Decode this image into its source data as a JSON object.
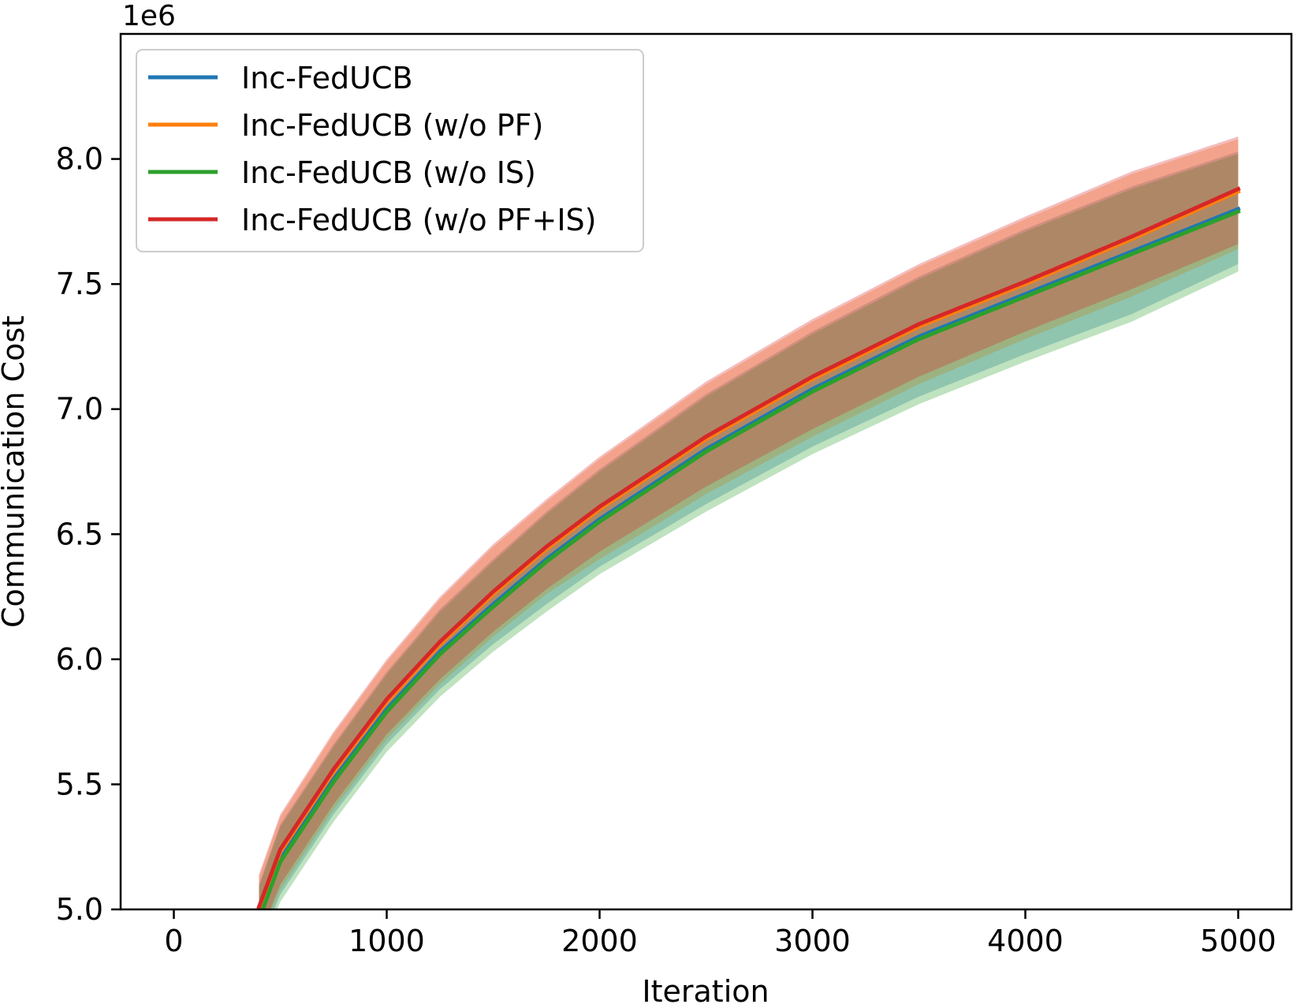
{
  "chart_data": {
    "type": "line",
    "title": "",
    "xlabel": "Iteration",
    "ylabel": "Communication Cost",
    "y_offset_label": "1e6",
    "y_scale_factor": 1000000,
    "xlim": [
      -250,
      5250
    ],
    "ylim": [
      5.0,
      8.5
    ],
    "xticks": [
      0,
      1000,
      2000,
      3000,
      4000,
      5000
    ],
    "xtick_labels": [
      "0",
      "1000",
      "2000",
      "3000",
      "4000",
      "5000"
    ],
    "yticks": [
      5.0,
      5.5,
      6.0,
      6.5,
      7.0,
      7.5,
      8.0
    ],
    "ytick_labels": [
      "5.0",
      "5.5",
      "6.0",
      "6.5",
      "7.0",
      "7.5",
      "8.0"
    ],
    "grid": false,
    "legend_position": "top-left",
    "x": [
      400,
      500,
      750,
      1000,
      1250,
      1500,
      1750,
      2000,
      2500,
      3000,
      3500,
      4000,
      4500,
      5000
    ],
    "series": [
      {
        "name": "Inc-FedUCB",
        "color": "#1f77b4",
        "values": [
          4.97,
          5.2,
          5.52,
          5.8,
          6.03,
          6.22,
          6.4,
          6.56,
          6.84,
          7.08,
          7.29,
          7.46,
          7.63,
          7.8
        ],
        "lower": [
          4.85,
          5.06,
          5.38,
          5.66,
          5.88,
          6.06,
          6.22,
          6.37,
          6.62,
          6.85,
          7.05,
          7.22,
          7.38,
          7.58
        ],
        "upper": [
          5.1,
          5.34,
          5.66,
          5.95,
          6.2,
          6.4,
          6.59,
          6.76,
          7.06,
          7.31,
          7.53,
          7.72,
          7.89,
          8.03
        ]
      },
      {
        "name": "Inc-FedUCB (w/o PF)",
        "color": "#ff7f0e",
        "values": [
          5.0,
          5.23,
          5.55,
          5.83,
          6.06,
          6.26,
          6.44,
          6.6,
          6.88,
          7.12,
          7.33,
          7.5,
          7.68,
          7.87
        ],
        "lower": [
          4.88,
          5.08,
          5.4,
          5.68,
          5.9,
          6.09,
          6.26,
          6.4,
          6.66,
          6.89,
          7.1,
          7.28,
          7.45,
          7.64
        ],
        "upper": [
          5.13,
          5.37,
          5.7,
          5.99,
          6.24,
          6.45,
          6.63,
          6.8,
          7.1,
          7.35,
          7.57,
          7.76,
          7.94,
          8.08
        ]
      },
      {
        "name": "Inc-FedUCB (w/o IS)",
        "color": "#2ca02c",
        "values": [
          4.96,
          5.19,
          5.51,
          5.79,
          6.02,
          6.21,
          6.39,
          6.55,
          6.83,
          7.07,
          7.28,
          7.45,
          7.62,
          7.79
        ],
        "lower": [
          4.82,
          5.03,
          5.35,
          5.63,
          5.85,
          6.03,
          6.19,
          6.34,
          6.59,
          6.82,
          7.02,
          7.19,
          7.35,
          7.55
        ],
        "upper": [
          5.09,
          5.33,
          5.65,
          5.94,
          6.19,
          6.39,
          6.58,
          6.75,
          7.05,
          7.3,
          7.52,
          7.71,
          7.88,
          8.02
        ]
      },
      {
        "name": "Inc-FedUCB (w/o PF+IS)",
        "color": "#d62728",
        "values": [
          5.01,
          5.24,
          5.56,
          5.84,
          6.07,
          6.27,
          6.45,
          6.61,
          6.89,
          7.13,
          7.34,
          7.51,
          7.69,
          7.88
        ],
        "lower": [
          4.89,
          5.1,
          5.42,
          5.7,
          5.92,
          6.11,
          6.28,
          6.43,
          6.69,
          6.92,
          7.13,
          7.31,
          7.48,
          7.66
        ],
        "upper": [
          5.14,
          5.38,
          5.71,
          6.0,
          6.25,
          6.46,
          6.64,
          6.81,
          7.11,
          7.36,
          7.58,
          7.77,
          7.95,
          8.09
        ]
      }
    ]
  }
}
